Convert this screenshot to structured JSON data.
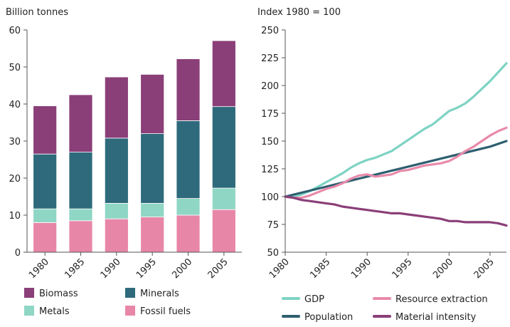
{
  "chart_data": [
    {
      "type": "bar",
      "stacked": true,
      "ylabel": "Billion tonnes",
      "ylim": [
        0,
        60
      ],
      "yticks": [
        "0",
        "10",
        "20",
        "30",
        "40",
        "50",
        "60"
      ],
      "categories": [
        "1980",
        "1985",
        "1990",
        "1995",
        "2000",
        "2005"
      ],
      "series": [
        {
          "name": "Fossil fuels",
          "color": "#e886a8",
          "values": [
            8,
            8.5,
            9,
            9.5,
            10,
            11.5
          ]
        },
        {
          "name": "Metals",
          "color": "#8fd6c5",
          "values": [
            3.7,
            3.2,
            4.2,
            3.7,
            4.5,
            5.8
          ]
        },
        {
          "name": "Minerals",
          "color": "#2e6a7c",
          "values": [
            14.8,
            15.3,
            17.6,
            18.8,
            21,
            22
          ]
        },
        {
          "name": "Biomass",
          "color": "#8a3f78",
          "values": [
            13,
            15.5,
            16.5,
            16,
            16.7,
            17.8
          ]
        }
      ],
      "legend": [
        {
          "name": "Biomass",
          "color": "#8a3f78"
        },
        {
          "name": "Minerals",
          "color": "#2e6a7c"
        },
        {
          "name": "Metals",
          "color": "#8fd6c5"
        },
        {
          "name": "Fossil fuels",
          "color": "#e886a8"
        }
      ],
      "legend_position": "bottom",
      "grid": false
    },
    {
      "type": "line",
      "ylabel": "Index 1980 = 100",
      "ylim": [
        50,
        250
      ],
      "yticks": [
        "50",
        "75",
        "100",
        "125",
        "150",
        "175",
        "200",
        "225",
        "250"
      ],
      "xlim": [
        1980,
        2007
      ],
      "xticks": [
        "1980",
        "1985",
        "1990",
        "1995",
        "2000",
        "2005"
      ],
      "series": [
        {
          "name": "GDP",
          "color": "#7dd3c3",
          "x": [
            1980,
            1981,
            1982,
            1983,
            1984,
            1985,
            1986,
            1987,
            1988,
            1989,
            1990,
            1991,
            1992,
            1993,
            1994,
            1995,
            1996,
            1997,
            1998,
            1999,
            2000,
            2001,
            2002,
            2003,
            2004,
            2005,
            2006,
            2007
          ],
          "y": [
            100,
            100,
            102,
            105,
            109,
            113,
            117,
            121,
            126,
            130,
            133,
            135,
            138,
            141,
            146,
            151,
            156,
            161,
            165,
            171,
            177,
            180,
            184,
            190,
            197,
            204,
            212,
            220
          ]
        },
        {
          "name": "Population",
          "color": "#2e5f70",
          "x": [
            1980,
            1985,
            1990,
            1995,
            2000,
            2005,
            2007
          ],
          "y": [
            100,
            109,
            118,
            127,
            136,
            145,
            150
          ]
        },
        {
          "name": "Resource extraction",
          "color": "#e88aab",
          "x": [
            1980,
            1981,
            1982,
            1983,
            1984,
            1985,
            1986,
            1987,
            1988,
            1989,
            1990,
            1991,
            1992,
            1993,
            1994,
            1995,
            1996,
            1997,
            1998,
            1999,
            2000,
            2001,
            2002,
            2003,
            2004,
            2005,
            2006,
            2007
          ],
          "y": [
            100,
            99,
            99,
            101,
            104,
            107,
            109,
            112,
            116,
            119,
            120,
            118,
            119,
            120,
            123,
            124,
            126,
            128,
            129,
            130,
            132,
            136,
            141,
            145,
            150,
            155,
            159,
            162
          ]
        },
        {
          "name": "Material intensity",
          "color": "#8a3f78",
          "x": [
            1980,
            1981,
            1982,
            1983,
            1984,
            1985,
            1986,
            1987,
            1988,
            1989,
            1990,
            1991,
            1992,
            1993,
            1994,
            1995,
            1996,
            1997,
            1998,
            1999,
            2000,
            2001,
            2002,
            2003,
            2004,
            2005,
            2006,
            2007
          ],
          "y": [
            100,
            99,
            97,
            96,
            95,
            94,
            93,
            91,
            90,
            89,
            88,
            87,
            86,
            85,
            85,
            84,
            83,
            82,
            81,
            80,
            78,
            78,
            77,
            77,
            77,
            77,
            76,
            74
          ]
        }
      ],
      "legend": [
        {
          "name": "GDP",
          "color": "#7dd3c3"
        },
        {
          "name": "Resource extraction",
          "color": "#e88aab"
        },
        {
          "name": "Population",
          "color": "#2e5f70"
        },
        {
          "name": "Material intensity",
          "color": "#8a3f78"
        }
      ],
      "legend_position": "bottom",
      "grid": false
    }
  ]
}
